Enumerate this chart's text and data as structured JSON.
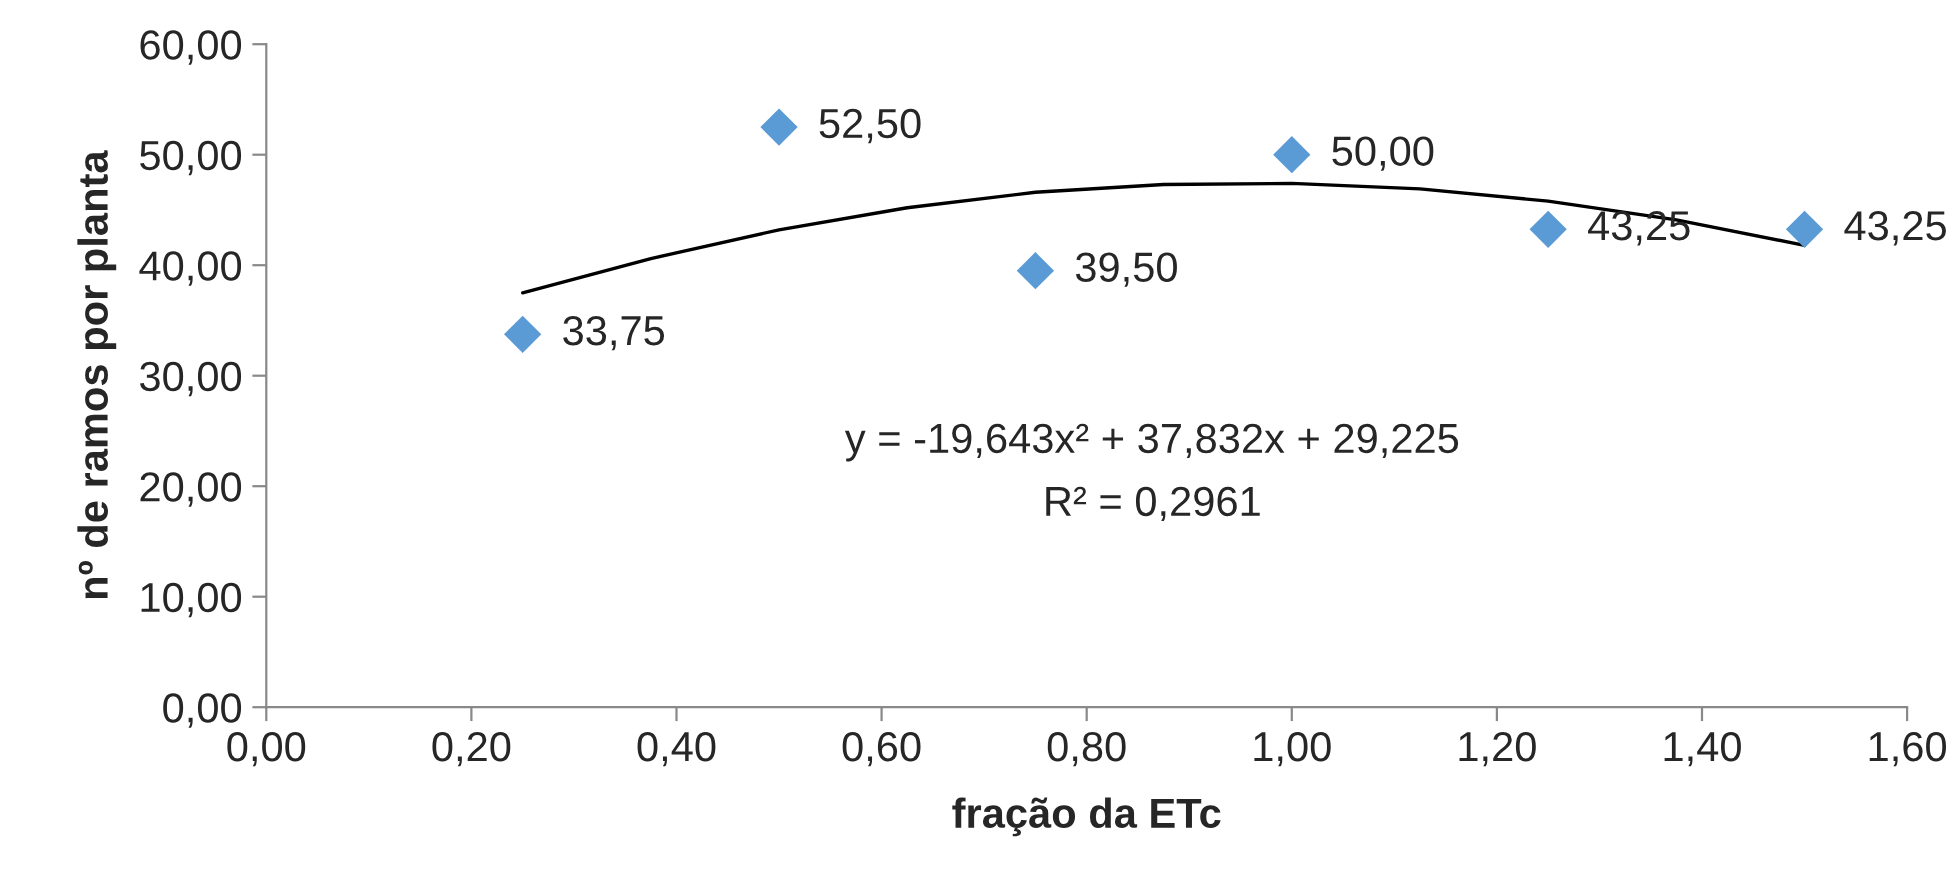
{
  "chart_data": {
    "type": "scatter",
    "xlabel": "fração da ETc",
    "ylabel": "nº de ramos por planta",
    "xlim": [
      0,
      1.6
    ],
    "ylim": [
      0,
      60
    ],
    "xticks": [
      {
        "value": 0,
        "label": "0,00"
      },
      {
        "value": 0.2,
        "label": "0,20"
      },
      {
        "value": 0.4,
        "label": "0,40"
      },
      {
        "value": 0.6,
        "label": "0,60"
      },
      {
        "value": 0.8,
        "label": "0,80"
      },
      {
        "value": 1.0,
        "label": "1,00"
      },
      {
        "value": 1.2,
        "label": "1,20"
      },
      {
        "value": 1.4,
        "label": "1,40"
      },
      {
        "value": 1.6,
        "label": "1,60"
      }
    ],
    "yticks": [
      {
        "value": 0,
        "label": "0,00"
      },
      {
        "value": 10,
        "label": "10,00"
      },
      {
        "value": 20,
        "label": "20,00"
      },
      {
        "value": 30,
        "label": "30,00"
      },
      {
        "value": 40,
        "label": "40,00"
      },
      {
        "value": 50,
        "label": "50,00"
      },
      {
        "value": 60,
        "label": "60,00"
      }
    ],
    "grid": false,
    "legend": false,
    "series": [
      {
        "color": "#5b9bd5",
        "marker": "diamond",
        "x": [
          0.25,
          0.5,
          0.75,
          1.0,
          1.25,
          1.5
        ],
        "values": [
          33.75,
          52.5,
          39.5,
          50.0,
          43.25,
          43.25
        ],
        "value_labels": [
          "33,75",
          "52,50",
          "39,50",
          "50,00",
          "43,25",
          "43,25"
        ]
      },
      {
        "type": "line",
        "color": "#000000",
        "line_style": "solid",
        "x": [
          0.25,
          0.375,
          0.5,
          0.625,
          0.75,
          0.875,
          1.0,
          1.125,
          1.25,
          1.375,
          1.5
        ],
        "values": [
          37.5,
          40.6,
          43.2,
          45.2,
          46.6,
          47.3,
          47.4,
          46.9,
          45.8,
          44.1,
          41.8
        ]
      }
    ],
    "annotations": [
      "y = -19,643x² + 37,832x + 29,225",
      "R² = 0,2961"
    ]
  }
}
